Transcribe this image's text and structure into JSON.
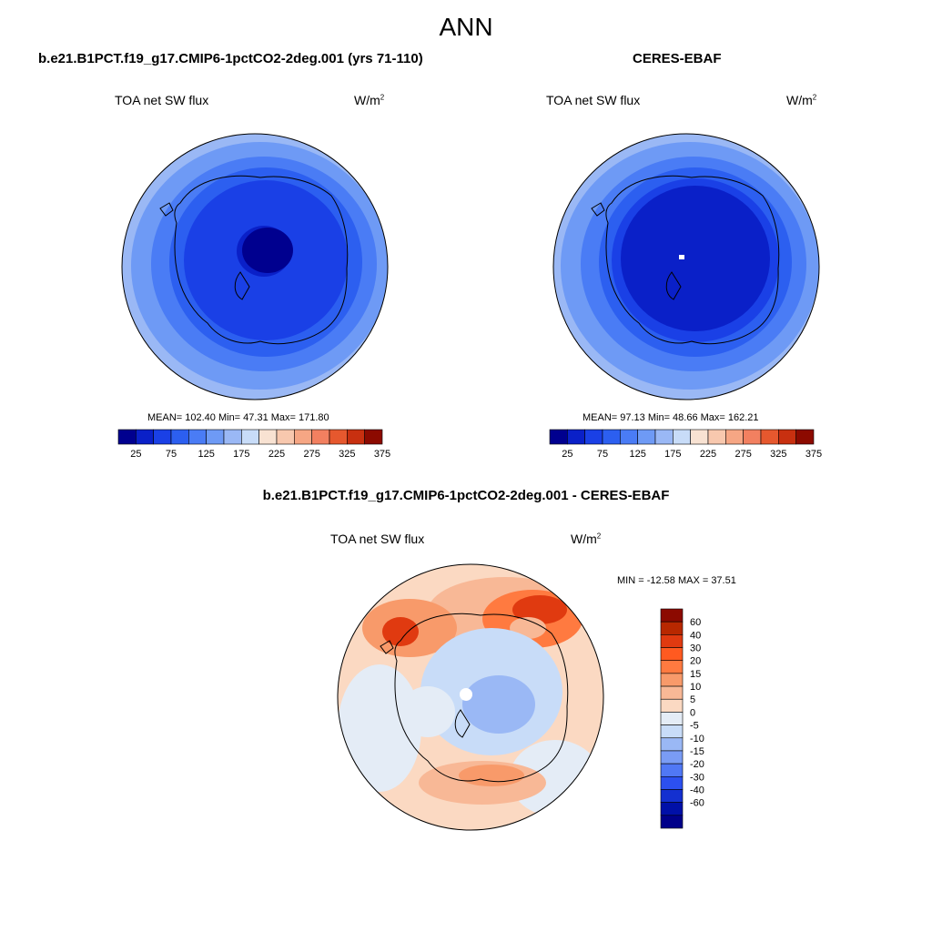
{
  "header": {
    "title": "ANN"
  },
  "panels": {
    "model": {
      "case_title": "b.e21.B1PCT.f19_g17.CMIP6-1pctCO2-2deg.001 (yrs 71-110)",
      "variable": "TOA net SW flux",
      "units_base": "W/m",
      "units_exp": "2",
      "stats": "MEAN= 102.40  Min=  47.31  Max= 171.80"
    },
    "obs": {
      "case_title": "CERES-EBAF",
      "variable": "TOA net SW flux",
      "units_base": "W/m",
      "units_exp": "2",
      "stats": "MEAN=  97.13  Min=  48.66  Max= 162.21"
    },
    "diff": {
      "case_title": "b.e21.B1PCT.f19_g17.CMIP6-1pctCO2-2deg.001 - CERES-EBAF",
      "variable": "TOA net SW flux",
      "units_base": "W/m",
      "units_exp": "2",
      "stats": "MIN = -12.58 MAX =  37.51"
    }
  },
  "colorbars": {
    "abs": {
      "colors": [
        "#00008f",
        "#0a20c8",
        "#1a40e6",
        "#2c5ff0",
        "#4a7cf5",
        "#6e9af5",
        "#9ab8f5",
        "#c8dcf8",
        "#f8e2d2",
        "#f8c8ae",
        "#f6a684",
        "#f28060",
        "#e6582e",
        "#c83010",
        "#8c0a00"
      ],
      "ticks": [
        "25",
        "75",
        "125",
        "175",
        "225",
        "275",
        "325",
        "375"
      ]
    },
    "diff": {
      "colors": [
        "#8c0a00",
        "#b82800",
        "#e03a10",
        "#ff5a20",
        "#ff7a40",
        "#f89a6a",
        "#f8b896",
        "#fbd9c2",
        "#e4ecf6",
        "#c8dcf8",
        "#9ab8f5",
        "#7a9cf5",
        "#5078f5",
        "#2c50f0",
        "#1430d0",
        "#0010a8",
        "#00008a"
      ],
      "ticks": [
        "60",
        "40",
        "30",
        "20",
        "15",
        "10",
        "5",
        "0",
        "-5",
        "-10",
        "-15",
        "-20",
        "-30",
        "-40",
        "-60"
      ]
    }
  }
}
